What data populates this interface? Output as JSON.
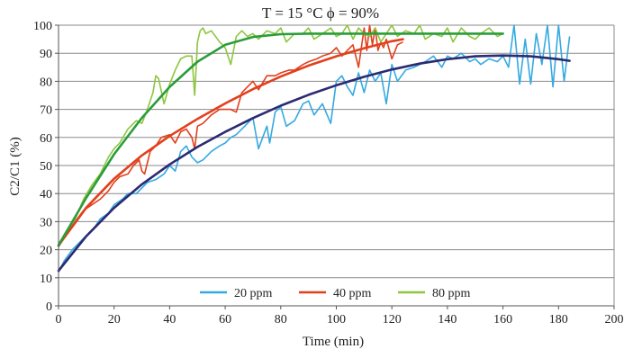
{
  "chart_data": {
    "type": "line",
    "title": "T = 15 °C    ϕ = 90%",
    "xlabel": "Time (min)",
    "ylabel": "C2/C1 (%)",
    "xlim": [
      0,
      200
    ],
    "ylim": [
      0,
      100
    ],
    "x_ticks": [
      0,
      20,
      40,
      60,
      80,
      100,
      120,
      140,
      160,
      180,
      200
    ],
    "y_ticks": [
      0,
      10,
      20,
      30,
      40,
      50,
      60,
      70,
      80,
      90,
      100
    ],
    "grid": "horizontal",
    "legend_position": "bottom-center",
    "series": [
      {
        "name": "20 ppm",
        "color": "#36a9e1",
        "x": [
          0,
          2,
          5,
          8,
          10,
          13,
          15,
          18,
          20,
          23,
          25,
          28,
          30,
          32,
          35,
          38,
          40,
          42,
          44,
          46,
          48,
          50,
          52,
          55,
          58,
          60,
          62,
          64,
          66,
          68,
          70,
          72,
          75,
          76,
          78,
          80,
          82,
          85,
          88,
          90,
          92,
          95,
          98,
          100,
          102,
          104,
          106,
          108,
          110,
          112,
          114,
          116,
          118,
          120,
          122,
          125,
          128,
          130,
          132,
          135,
          138,
          140,
          142,
          145,
          148,
          150,
          152,
          155,
          158,
          160,
          162,
          164,
          166,
          168,
          170,
          172,
          174,
          176,
          178,
          180,
          182,
          184
        ],
        "y": [
          12,
          16,
          20,
          23,
          25,
          28,
          31,
          33,
          36,
          38,
          40,
          40,
          42,
          44,
          45,
          47,
          50,
          48,
          55,
          57,
          53,
          51,
          52,
          55,
          57,
          58,
          60,
          61,
          63,
          65,
          67,
          56,
          64,
          58,
          69,
          71,
          64,
          66,
          72,
          73,
          68,
          72,
          65,
          80,
          82,
          78,
          75,
          83,
          76,
          84,
          80,
          83,
          72,
          86,
          80,
          84,
          85,
          86,
          87,
          89,
          85,
          89,
          88,
          90,
          87,
          88,
          86,
          88,
          87,
          89,
          85,
          100,
          79,
          95,
          79,
          97,
          86,
          100,
          78,
          100,
          80,
          96
        ]
      },
      {
        "name": "40 ppm",
        "color": "#e2401c",
        "x": [
          0,
          3,
          6,
          9,
          12,
          15,
          18,
          20,
          22,
          25,
          27,
          29,
          30,
          31,
          33,
          35,
          37,
          40,
          42,
          44,
          46,
          48,
          49,
          50,
          52,
          55,
          58,
          60,
          62,
          64,
          66,
          68,
          70,
          72,
          75,
          78,
          80,
          83,
          85,
          88,
          90,
          93,
          95,
          98,
          100,
          102,
          104,
          106,
          108,
          110,
          111,
          112,
          113,
          114,
          115,
          116,
          117,
          118,
          120,
          122,
          124
        ],
        "y": [
          21,
          26,
          30,
          34,
          36,
          38,
          41,
          44,
          46,
          47,
          50,
          52,
          48,
          47,
          55,
          57,
          60,
          61,
          58,
          62,
          63,
          60,
          56,
          64,
          65,
          68,
          70,
          70,
          70,
          69,
          76,
          78,
          80,
          77,
          82,
          82,
          83,
          84,
          84,
          86,
          87,
          88,
          89,
          90,
          92,
          89,
          91,
          93,
          85,
          99,
          91,
          100,
          93,
          99,
          91,
          94,
          92,
          95,
          88,
          93,
          94
        ]
      },
      {
        "name": "80 ppm",
        "color": "#8dc63f",
        "x": [
          0,
          3,
          6,
          9,
          12,
          15,
          18,
          20,
          22,
          25,
          28,
          30,
          32,
          34,
          35,
          36,
          38,
          40,
          42,
          44,
          46,
          48,
          49,
          50,
          51,
          52,
          53,
          55,
          58,
          60,
          62,
          64,
          66,
          68,
          70,
          72,
          75,
          78,
          80,
          82,
          85,
          88,
          90,
          92,
          95,
          98,
          100,
          102,
          104,
          106,
          108,
          110,
          112,
          114,
          116,
          118,
          120,
          122,
          125,
          128,
          130,
          132,
          135,
          138,
          140,
          142,
          145,
          148,
          150,
          152,
          155,
          158,
          160
        ],
        "y": [
          22,
          27,
          31,
          38,
          43,
          47,
          53,
          56,
          58,
          63,
          66,
          65,
          70,
          76,
          82,
          81,
          72,
          79,
          84,
          88,
          89,
          89,
          75,
          94,
          98,
          99,
          97,
          98,
          94,
          92,
          86,
          96,
          98,
          96,
          97,
          95,
          98,
          97,
          99,
          94,
          97,
          97,
          99,
          95,
          97,
          99,
          96,
          97,
          100,
          95,
          99,
          97,
          96,
          99,
          94,
          97,
          100,
          96,
          98,
          97,
          100,
          95,
          97,
          96,
          99,
          94,
          99,
          96,
          95,
          97,
          99,
          96,
          97
        ]
      }
    ],
    "fits": [
      {
        "color": "#2b2a72",
        "x": [
          0,
          10,
          20,
          30,
          40,
          50,
          60,
          70,
          80,
          90,
          100,
          110,
          120,
          130,
          140,
          150,
          160,
          170,
          180,
          184
        ],
        "y": [
          12.5,
          24.8,
          34.9,
          43.3,
          50.4,
          56.6,
          62.0,
          66.9,
          71.3,
          75.2,
          78.6,
          81.6,
          84.2,
          86.3,
          87.9,
          88.9,
          89.2,
          88.9,
          87.9,
          87.3
        ]
      },
      {
        "color": "#e2401c",
        "x": [
          0,
          10,
          20,
          30,
          40,
          50,
          60,
          70,
          80,
          90,
          100,
          110,
          120,
          124
        ],
        "y": [
          21.5,
          35.0,
          45.3,
          53.6,
          60.5,
          66.6,
          72.1,
          77.2,
          81.7,
          85.6,
          88.9,
          91.8,
          94.3,
          95.0
        ]
      },
      {
        "color": "#2a9d3a",
        "x": [
          0,
          10,
          20,
          30,
          40,
          50,
          60,
          70,
          80,
          90,
          100,
          110,
          120,
          130,
          140,
          150,
          160
        ],
        "y": [
          21.5,
          38.5,
          54.0,
          67.0,
          78.0,
          87.0,
          93.0,
          95.8,
          96.8,
          97.0,
          97.0,
          97.0,
          97.0,
          97.0,
          97.0,
          97.0,
          97.0
        ]
      }
    ]
  }
}
